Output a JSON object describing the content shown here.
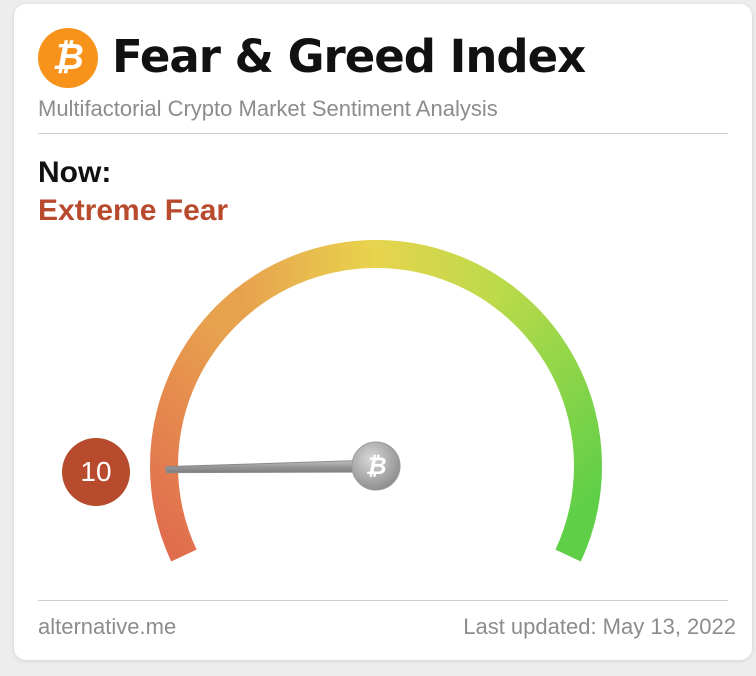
{
  "header": {
    "logo_icon": "bitcoin-icon",
    "logo_glyph": "₿",
    "title": "Fear & Greed Index",
    "subtitle": "Multifactorial Crypto Market Sentiment Analysis"
  },
  "sentiment": {
    "now_label": "Now:",
    "status": "Extreme Fear",
    "status_color": "#b84a2e",
    "value": "10",
    "value_fraction": 0.1,
    "badge_color": "#b84a2e"
  },
  "gauge": {
    "scale_min": 0,
    "scale_max": 100,
    "hub_icon": "bitcoin-icon",
    "hub_glyph": "₿",
    "colors": {
      "fear": "#e06a4e",
      "neutral": "#e8d44d",
      "greed": "#5fcf48"
    }
  },
  "footer": {
    "source": "alternative.me",
    "last_updated": "Last updated: May 13, 2022"
  }
}
